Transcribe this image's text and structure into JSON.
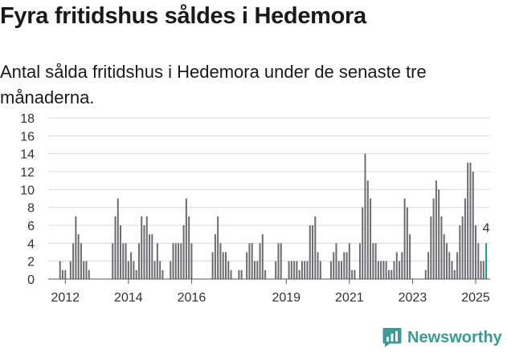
{
  "title": "Fyra fritidshus såldes i Hedemora",
  "subtitle": "Antal sålda fritidshus i Hedemora under de senaste tre månaderna.",
  "brand": {
    "name": "Newsworthy",
    "color": "#3a9a96",
    "icon": "newsworthy-chart-logo-icon"
  },
  "chart_data": {
    "type": "bar",
    "x_start": "2011-07",
    "x_end": "2025-06",
    "y_ticks": [
      0,
      2,
      4,
      6,
      8,
      10,
      12,
      14,
      16,
      18
    ],
    "ylim": [
      0,
      18
    ],
    "x_ticks": [
      {
        "label": "2012",
        "date": "2012-01"
      },
      {
        "label": "2014",
        "date": "2014-01"
      },
      {
        "label": "2016",
        "date": "2016-01"
      },
      {
        "label": "2019",
        "date": "2019-01"
      },
      {
        "label": "2021",
        "date": "2021-01"
      },
      {
        "label": "2023",
        "date": "2023-01"
      },
      {
        "label": "2025",
        "date": "2025-01"
      }
    ],
    "grid": true,
    "bar_color": "#6e6e72",
    "highlight_color": "#1a9a94",
    "highlight_label": "4",
    "series": [
      {
        "points": [
          {
            "x": "2011-11",
            "y": 2
          },
          {
            "x": "2011-12",
            "y": 1
          },
          {
            "x": "2012-01",
            "y": 1
          },
          {
            "x": "2012-03",
            "y": 2
          },
          {
            "x": "2012-04",
            "y": 4
          },
          {
            "x": "2012-05",
            "y": 7
          },
          {
            "x": "2012-06",
            "y": 5
          },
          {
            "x": "2012-07",
            "y": 4
          },
          {
            "x": "2012-08",
            "y": 2
          },
          {
            "x": "2012-09",
            "y": 2
          },
          {
            "x": "2012-10",
            "y": 1
          },
          {
            "x": "2013-07",
            "y": 4
          },
          {
            "x": "2013-08",
            "y": 7
          },
          {
            "x": "2013-09",
            "y": 9
          },
          {
            "x": "2013-10",
            "y": 6
          },
          {
            "x": "2013-11",
            "y": 4
          },
          {
            "x": "2013-12",
            "y": 4
          },
          {
            "x": "2014-01",
            "y": 2
          },
          {
            "x": "2014-02",
            "y": 3
          },
          {
            "x": "2014-03",
            "y": 2
          },
          {
            "x": "2014-04",
            "y": 1
          },
          {
            "x": "2014-05",
            "y": 4
          },
          {
            "x": "2014-06",
            "y": 7
          },
          {
            "x": "2014-07",
            "y": 6
          },
          {
            "x": "2014-08",
            "y": 7
          },
          {
            "x": "2014-09",
            "y": 5
          },
          {
            "x": "2014-10",
            "y": 5
          },
          {
            "x": "2014-11",
            "y": 2
          },
          {
            "x": "2014-12",
            "y": 4
          },
          {
            "x": "2015-01",
            "y": 2
          },
          {
            "x": "2015-02",
            "y": 1
          },
          {
            "x": "2015-05",
            "y": 2
          },
          {
            "x": "2015-06",
            "y": 4
          },
          {
            "x": "2015-07",
            "y": 4
          },
          {
            "x": "2015-08",
            "y": 4
          },
          {
            "x": "2015-09",
            "y": 4
          },
          {
            "x": "2015-10",
            "y": 6
          },
          {
            "x": "2015-11",
            "y": 9
          },
          {
            "x": "2015-12",
            "y": 7
          },
          {
            "x": "2016-01",
            "y": 4
          },
          {
            "x": "2016-09",
            "y": 3
          },
          {
            "x": "2016-10",
            "y": 5
          },
          {
            "x": "2016-11",
            "y": 7
          },
          {
            "x": "2016-12",
            "y": 4
          },
          {
            "x": "2017-01",
            "y": 3
          },
          {
            "x": "2017-02",
            "y": 3
          },
          {
            "x": "2017-03",
            "y": 2
          },
          {
            "x": "2017-04",
            "y": 1
          },
          {
            "x": "2017-07",
            "y": 1
          },
          {
            "x": "2017-08",
            "y": 1
          },
          {
            "x": "2017-10",
            "y": 3
          },
          {
            "x": "2017-11",
            "y": 4
          },
          {
            "x": "2017-12",
            "y": 4
          },
          {
            "x": "2018-01",
            "y": 2
          },
          {
            "x": "2018-02",
            "y": 2
          },
          {
            "x": "2018-03",
            "y": 4
          },
          {
            "x": "2018-04",
            "y": 5
          },
          {
            "x": "2018-05",
            "y": 1
          },
          {
            "x": "2018-09",
            "y": 2
          },
          {
            "x": "2018-10",
            "y": 4
          },
          {
            "x": "2018-11",
            "y": 4
          },
          {
            "x": "2019-02",
            "y": 2
          },
          {
            "x": "2019-03",
            "y": 2
          },
          {
            "x": "2019-04",
            "y": 2
          },
          {
            "x": "2019-05",
            "y": 2
          },
          {
            "x": "2019-06",
            "y": 1
          },
          {
            "x": "2019-07",
            "y": 2
          },
          {
            "x": "2019-08",
            "y": 2
          },
          {
            "x": "2019-09",
            "y": 2
          },
          {
            "x": "2019-10",
            "y": 6
          },
          {
            "x": "2019-11",
            "y": 6
          },
          {
            "x": "2019-12",
            "y": 7
          },
          {
            "x": "2020-01",
            "y": 3
          },
          {
            "x": "2020-02",
            "y": 2
          },
          {
            "x": "2020-06",
            "y": 2
          },
          {
            "x": "2020-07",
            "y": 3
          },
          {
            "x": "2020-08",
            "y": 4
          },
          {
            "x": "2020-09",
            "y": 2
          },
          {
            "x": "2020-10",
            "y": 2
          },
          {
            "x": "2020-11",
            "y": 3
          },
          {
            "x": "2020-12",
            "y": 3
          },
          {
            "x": "2021-01",
            "y": 4
          },
          {
            "x": "2021-02",
            "y": 1
          },
          {
            "x": "2021-03",
            "y": 1
          },
          {
            "x": "2021-05",
            "y": 4
          },
          {
            "x": "2021-06",
            "y": 8
          },
          {
            "x": "2021-07",
            "y": 14
          },
          {
            "x": "2021-08",
            "y": 11
          },
          {
            "x": "2021-09",
            "y": 9
          },
          {
            "x": "2021-10",
            "y": 4
          },
          {
            "x": "2021-11",
            "y": 4
          },
          {
            "x": "2021-12",
            "y": 2
          },
          {
            "x": "2022-01",
            "y": 2
          },
          {
            "x": "2022-02",
            "y": 2
          },
          {
            "x": "2022-03",
            "y": 2
          },
          {
            "x": "2022-04",
            "y": 1
          },
          {
            "x": "2022-05",
            "y": 1
          },
          {
            "x": "2022-06",
            "y": 2
          },
          {
            "x": "2022-07",
            "y": 3
          },
          {
            "x": "2022-08",
            "y": 2
          },
          {
            "x": "2022-09",
            "y": 3
          },
          {
            "x": "2022-10",
            "y": 9
          },
          {
            "x": "2022-11",
            "y": 8
          },
          {
            "x": "2022-12",
            "y": 5
          },
          {
            "x": "2023-06",
            "y": 1
          },
          {
            "x": "2023-07",
            "y": 3
          },
          {
            "x": "2023-08",
            "y": 7
          },
          {
            "x": "2023-09",
            "y": 9
          },
          {
            "x": "2023-10",
            "y": 11
          },
          {
            "x": "2023-11",
            "y": 10
          },
          {
            "x": "2023-12",
            "y": 7
          },
          {
            "x": "2024-01",
            "y": 5
          },
          {
            "x": "2024-02",
            "y": 4
          },
          {
            "x": "2024-03",
            "y": 3
          },
          {
            "x": "2024-04",
            "y": 2
          },
          {
            "x": "2024-05",
            "y": 1
          },
          {
            "x": "2024-06",
            "y": 3
          },
          {
            "x": "2024-07",
            "y": 6
          },
          {
            "x": "2024-08",
            "y": 7
          },
          {
            "x": "2024-09",
            "y": 9
          },
          {
            "x": "2024-10",
            "y": 13
          },
          {
            "x": "2024-11",
            "y": 13
          },
          {
            "x": "2024-12",
            "y": 12
          },
          {
            "x": "2025-01",
            "y": 6
          },
          {
            "x": "2025-02",
            "y": 4
          },
          {
            "x": "2025-03",
            "y": 2
          },
          {
            "x": "2025-04",
            "y": 2
          },
          {
            "x": "2025-05",
            "y": 4
          }
        ]
      }
    ]
  }
}
